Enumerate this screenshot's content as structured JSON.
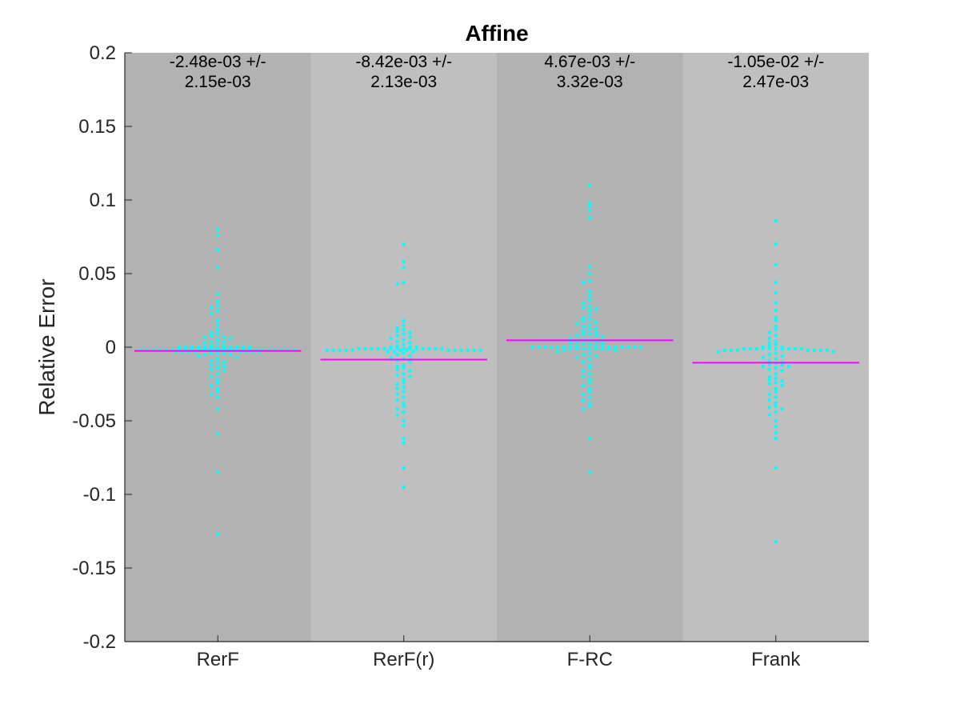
{
  "chart_data": {
    "type": "scatter",
    "title": "Affine",
    "xlabel": "",
    "ylabel": "Relative Error",
    "ylim": [
      -0.2,
      0.2
    ],
    "yticks": [
      "-0.2",
      "-0.15",
      "-0.1",
      "-0.05",
      "0",
      "0.05",
      "0.1",
      "0.15",
      "0.2"
    ],
    "grid": false,
    "colors": {
      "points": "#00ffff",
      "mean_line": "#ff00ff",
      "band_dark": "#b2b2b2",
      "band_light": "#bfbfbf",
      "axis": "#262626"
    },
    "groups": [
      {
        "category": "RerF",
        "mean": -0.00248,
        "annotation_line1": "-2.48e-03 +/-",
        "annotation_line2": "2.15e-03",
        "values": [
          0.08,
          0.076,
          0.066,
          0.054,
          0.036,
          0.031,
          0.028,
          0.027,
          0.025,
          0.023,
          0.018,
          0.015,
          0.012,
          0.01,
          0.009,
          0.008,
          0.007,
          0.007,
          0.006,
          0.005,
          0.004,
          0.004,
          0.003,
          0.002,
          0.001,
          0.001,
          0.0,
          0.0,
          0.0,
          0.0,
          0.0,
          0.0,
          0.0,
          0.0,
          0.0,
          -0.001,
          -0.001,
          -0.001,
          -0.001,
          -0.001,
          -0.001,
          -0.001,
          -0.001,
          -0.001,
          -0.001,
          -0.001,
          -0.001,
          -0.002,
          -0.002,
          -0.002,
          -0.002,
          -0.002,
          -0.002,
          -0.002,
          -0.002,
          -0.002,
          -0.002,
          -0.002,
          -0.002,
          -0.002,
          -0.002,
          -0.002,
          -0.002,
          -0.002,
          -0.002,
          -0.002,
          -0.003,
          -0.003,
          -0.003,
          -0.003,
          -0.003,
          -0.003,
          -0.003,
          -0.003,
          -0.004,
          -0.004,
          -0.004,
          -0.005,
          -0.005,
          -0.006,
          -0.007,
          -0.008,
          -0.009,
          -0.01,
          -0.011,
          -0.012,
          -0.013,
          -0.014,
          -0.015,
          -0.016,
          -0.018,
          -0.02,
          -0.022,
          -0.024,
          -0.026,
          -0.028,
          -0.03,
          -0.032,
          -0.034,
          -0.042,
          -0.059,
          -0.085,
          -0.127
        ]
      },
      {
        "category": "RerF(r)",
        "mean": -0.00842,
        "annotation_line1": "-8.42e-03 +/-",
        "annotation_line2": "2.13e-03",
        "values": [
          0.07,
          0.058,
          0.054,
          0.044,
          0.043,
          0.018,
          0.015,
          0.013,
          0.012,
          0.011,
          0.01,
          0.009,
          0.008,
          0.007,
          0.006,
          0.005,
          0.004,
          0.003,
          0.002,
          0.001,
          0.0,
          0.0,
          0.0,
          -0.001,
          -0.001,
          -0.001,
          -0.001,
          -0.001,
          -0.001,
          -0.001,
          -0.001,
          -0.001,
          -0.001,
          -0.001,
          -0.001,
          -0.001,
          -0.001,
          -0.002,
          -0.002,
          -0.002,
          -0.002,
          -0.002,
          -0.002,
          -0.002,
          -0.002,
          -0.002,
          -0.002,
          -0.002,
          -0.002,
          -0.002,
          -0.003,
          -0.003,
          -0.003,
          -0.004,
          -0.005,
          -0.006,
          -0.007,
          -0.008,
          -0.009,
          -0.01,
          -0.012,
          -0.013,
          -0.014,
          -0.015,
          -0.016,
          -0.018,
          -0.019,
          -0.02,
          -0.022,
          -0.024,
          -0.025,
          -0.027,
          -0.028,
          -0.03,
          -0.032,
          -0.034,
          -0.036,
          -0.038,
          -0.04,
          -0.042,
          -0.044,
          -0.046,
          -0.05,
          -0.053,
          -0.062,
          -0.065,
          -0.082,
          -0.095
        ]
      },
      {
        "category": "F-RC",
        "mean": 0.00467,
        "annotation_line1": "4.67e-03 +/-",
        "annotation_line2": "3.32e-03",
        "values": [
          0.11,
          0.098,
          0.096,
          0.093,
          0.088,
          0.055,
          0.05,
          0.045,
          0.044,
          0.038,
          0.035,
          0.032,
          0.03,
          0.028,
          0.027,
          0.026,
          0.025,
          0.022,
          0.02,
          0.019,
          0.018,
          0.017,
          0.016,
          0.015,
          0.014,
          0.013,
          0.012,
          0.011,
          0.01,
          0.009,
          0.009,
          0.008,
          0.008,
          0.007,
          0.006,
          0.005,
          0.005,
          0.004,
          0.004,
          0.003,
          0.003,
          0.002,
          0.002,
          0.001,
          0.001,
          0.001,
          0.0,
          0.0,
          0.0,
          0.0,
          0.0,
          0.0,
          0.0,
          0.0,
          0.0,
          0.0,
          0.0,
          0.0,
          0.0,
          -0.001,
          -0.001,
          -0.001,
          -0.001,
          -0.001,
          -0.001,
          -0.001,
          -0.002,
          -0.002,
          -0.003,
          -0.004,
          -0.005,
          -0.006,
          -0.007,
          -0.008,
          -0.01,
          -0.012,
          -0.014,
          -0.016,
          -0.018,
          -0.02,
          -0.022,
          -0.024,
          -0.026,
          -0.028,
          -0.03,
          -0.032,
          -0.034,
          -0.036,
          -0.038,
          -0.04,
          -0.042,
          -0.062,
          -0.085
        ]
      },
      {
        "category": "Frank",
        "mean": -0.0105,
        "annotation_line1": "-1.05e-02 +/-",
        "annotation_line2": "2.47e-03",
        "values": [
          0.086,
          0.07,
          0.056,
          0.044,
          0.037,
          0.03,
          0.025,
          0.02,
          0.018,
          0.014,
          0.012,
          0.01,
          0.008,
          0.006,
          0.004,
          0.003,
          0.002,
          0.001,
          0.0,
          0.0,
          -0.001,
          -0.001,
          -0.001,
          -0.001,
          -0.001,
          -0.001,
          -0.001,
          -0.001,
          -0.001,
          -0.001,
          -0.002,
          -0.002,
          -0.002,
          -0.002,
          -0.002,
          -0.002,
          -0.002,
          -0.003,
          -0.003,
          -0.004,
          -0.005,
          -0.006,
          -0.007,
          -0.008,
          -0.009,
          -0.01,
          -0.011,
          -0.012,
          -0.012,
          -0.013,
          -0.013,
          -0.014,
          -0.015,
          -0.016,
          -0.018,
          -0.02,
          -0.021,
          -0.022,
          -0.023,
          -0.024,
          -0.025,
          -0.026,
          -0.028,
          -0.03,
          -0.032,
          -0.034,
          -0.036,
          -0.038,
          -0.04,
          -0.041,
          -0.042,
          -0.044,
          -0.046,
          -0.05,
          -0.054,
          -0.058,
          -0.062,
          -0.082,
          -0.132
        ]
      }
    ]
  }
}
